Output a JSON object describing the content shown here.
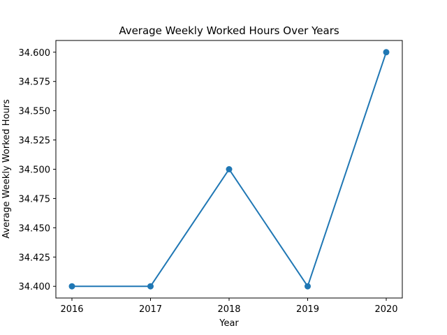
{
  "chart_data": {
    "type": "line",
    "title": "Average Weekly Worked Hours Over Years",
    "xlabel": "Year",
    "ylabel": "Average Weekly Worked Hours",
    "x": [
      "2016",
      "2017",
      "2018",
      "2019",
      "2020"
    ],
    "series": [
      {
        "values": [
          34.4,
          34.4,
          34.5,
          34.4,
          34.6
        ],
        "color": "#1f77b4"
      }
    ],
    "yticks": [
      "34.400",
      "34.425",
      "34.450",
      "34.475",
      "34.500",
      "34.525",
      "34.550",
      "34.575",
      "34.600"
    ],
    "ylim": [
      34.39,
      34.61
    ],
    "grid": false,
    "markers": true
  }
}
